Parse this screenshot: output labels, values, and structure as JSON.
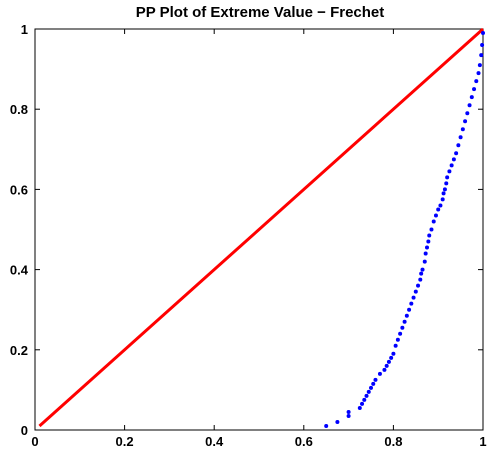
{
  "chart_data": {
    "type": "scatter",
    "title": "PP Plot of Extreme Value − Frechet",
    "xlabel": "",
    "ylabel": "",
    "xlim": [
      0,
      1
    ],
    "ylim": [
      0,
      1
    ],
    "grid": false,
    "x_ticks": [
      0,
      0.2,
      0.4,
      0.6,
      0.8,
      1
    ],
    "y_ticks": [
      0,
      0.2,
      0.4,
      0.6,
      0.8,
      1
    ],
    "x_tick_labels": [
      "0",
      "0.2",
      "0.4",
      "0.6",
      "0.8",
      "1"
    ],
    "y_tick_labels": [
      "0",
      "0.2",
      "0.4",
      "0.6",
      "0.8",
      "1"
    ],
    "series": [
      {
        "kind": "line",
        "color": "#ff0000",
        "x": [
          0.01,
          1.0
        ],
        "y": [
          0.01,
          1.0
        ]
      },
      {
        "kind": "scatter",
        "color": "#0000ff",
        "x": [
          0.65,
          0.675,
          0.7,
          0.7,
          0.725,
          0.73,
          0.735,
          0.74,
          0.745,
          0.75,
          0.755,
          0.76,
          0.77,
          0.78,
          0.785,
          0.79,
          0.795,
          0.8,
          0.805,
          0.81,
          0.815,
          0.82,
          0.825,
          0.83,
          0.835,
          0.84,
          0.845,
          0.85,
          0.855,
          0.86,
          0.862,
          0.865,
          0.87,
          0.872,
          0.875,
          0.878,
          0.88,
          0.885,
          0.89,
          0.895,
          0.9,
          0.905,
          0.91,
          0.912,
          0.915,
          0.918,
          0.92,
          0.925,
          0.93,
          0.935,
          0.94,
          0.945,
          0.95,
          0.955,
          0.96,
          0.965,
          0.97,
          0.975,
          0.98,
          0.985,
          0.99,
          0.993,
          0.996,
          0.998,
          1.0
        ],
        "y": [
          0.01,
          0.02,
          0.035,
          0.045,
          0.055,
          0.065,
          0.075,
          0.085,
          0.095,
          0.105,
          0.115,
          0.125,
          0.14,
          0.15,
          0.16,
          0.17,
          0.18,
          0.19,
          0.21,
          0.225,
          0.24,
          0.255,
          0.27,
          0.285,
          0.3,
          0.315,
          0.33,
          0.345,
          0.36,
          0.375,
          0.39,
          0.4,
          0.42,
          0.44,
          0.455,
          0.47,
          0.485,
          0.5,
          0.52,
          0.535,
          0.55,
          0.56,
          0.575,
          0.59,
          0.6,
          0.615,
          0.63,
          0.645,
          0.66,
          0.675,
          0.69,
          0.71,
          0.73,
          0.75,
          0.77,
          0.79,
          0.81,
          0.83,
          0.85,
          0.87,
          0.89,
          0.91,
          0.935,
          0.96,
          0.99
        ]
      }
    ]
  }
}
